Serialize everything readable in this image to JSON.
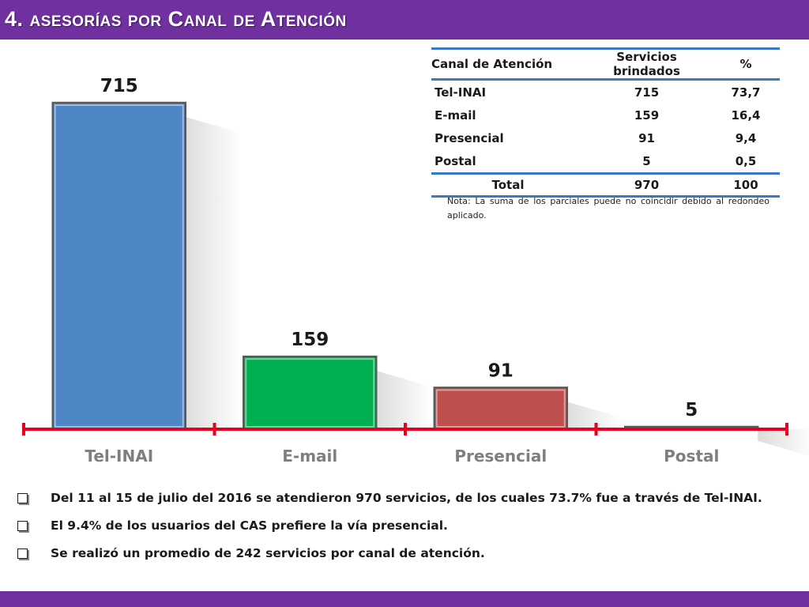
{
  "title": "4. asesorías por Canal de Atención",
  "colors": {
    "title_bar": "#7030a0",
    "tel_inai": "#4f86c6",
    "email": "#00b050",
    "presencial": "#c0504d",
    "postal": "#c0504d",
    "axis": "#e8001c",
    "table_rule": "#3a78c8"
  },
  "chart_data": {
    "type": "bar",
    "categories": [
      "Tel-INAI",
      "E-mail",
      "Presencial",
      "Postal"
    ],
    "values": [
      715,
      159,
      91,
      5
    ],
    "data_labels": [
      "715",
      "159",
      "91",
      "5"
    ],
    "ylim": [
      0,
      715
    ],
    "grid": false,
    "legend": "none"
  },
  "table": {
    "headers": [
      "Canal de Atención",
      "Servicios brindados",
      "%"
    ],
    "rows": [
      [
        "Tel-INAI",
        "715",
        "73,7"
      ],
      [
        "E-mail",
        "159",
        "16,4"
      ],
      [
        "Presencial",
        "91",
        "9,4"
      ],
      [
        "Postal",
        "5",
        "0,5"
      ]
    ],
    "total": [
      "Total",
      "970",
      "100"
    ]
  },
  "note": "Nota: La suma de los parciales puede no coincidir debido al redondeo aplicado.",
  "bullets": [
    "Del 11 al 15 de julio del 2016 se atendieron 970 servicios, de los cuales 73.7% fue a través de Tel-INAI.",
    "El 9.4% de los usuarios del CAS prefiere la vía presencial.",
    "Se realizó un promedio de 242 servicios por canal de atención."
  ]
}
